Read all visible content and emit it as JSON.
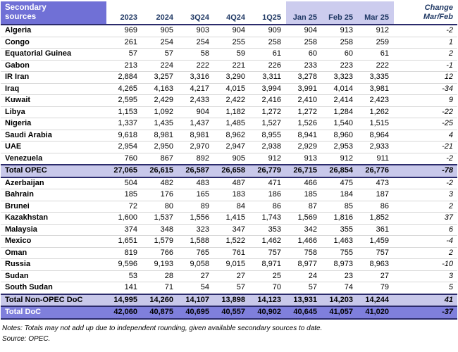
{
  "table": {
    "title_lines": [
      "Secondary",
      "sources"
    ],
    "change_header_lines": [
      "Change",
      "Mar/Feb"
    ],
    "columns": [
      {
        "label": "2023",
        "highlight": false
      },
      {
        "label": "2024",
        "highlight": false
      },
      {
        "label": "3Q24",
        "highlight": false
      },
      {
        "label": "4Q24",
        "highlight": false
      },
      {
        "label": "1Q25",
        "highlight": false
      },
      {
        "label": "Jan 25",
        "highlight": true
      },
      {
        "label": "Feb 25",
        "highlight": true
      },
      {
        "label": "Mar 25",
        "highlight": true
      }
    ],
    "rows": [
      {
        "type": "data",
        "name": "Algeria",
        "values": [
          "969",
          "905",
          "903",
          "904",
          "909",
          "904",
          "913",
          "912"
        ],
        "change": "-2"
      },
      {
        "type": "data",
        "name": "Congo",
        "values": [
          "261",
          "254",
          "254",
          "255",
          "258",
          "258",
          "258",
          "259"
        ],
        "change": "1"
      },
      {
        "type": "data",
        "name": "Equatorial Guinea",
        "values": [
          "57",
          "57",
          "58",
          "59",
          "61",
          "60",
          "60",
          "61"
        ],
        "change": "2"
      },
      {
        "type": "data",
        "name": "Gabon",
        "values": [
          "213",
          "224",
          "222",
          "221",
          "226",
          "233",
          "223",
          "222"
        ],
        "change": "-1"
      },
      {
        "type": "data",
        "name": "IR Iran",
        "values": [
          "2,884",
          "3,257",
          "3,316",
          "3,290",
          "3,311",
          "3,278",
          "3,323",
          "3,335"
        ],
        "change": "12"
      },
      {
        "type": "data",
        "name": "Iraq",
        "values": [
          "4,265",
          "4,163",
          "4,217",
          "4,015",
          "3,994",
          "3,991",
          "4,014",
          "3,981"
        ],
        "change": "-34"
      },
      {
        "type": "data",
        "name": "Kuwait",
        "values": [
          "2,595",
          "2,429",
          "2,433",
          "2,422",
          "2,416",
          "2,410",
          "2,414",
          "2,423"
        ],
        "change": "9"
      },
      {
        "type": "data",
        "name": "Libya",
        "values": [
          "1,153",
          "1,092",
          "904",
          "1,182",
          "1,272",
          "1,272",
          "1,284",
          "1,262"
        ],
        "change": "-22"
      },
      {
        "type": "data",
        "name": "Nigeria",
        "values": [
          "1,337",
          "1,435",
          "1,437",
          "1,485",
          "1,527",
          "1,526",
          "1,540",
          "1,515"
        ],
        "change": "-25"
      },
      {
        "type": "data",
        "name": "Saudi Arabia",
        "values": [
          "9,618",
          "8,981",
          "8,981",
          "8,962",
          "8,955",
          "8,941",
          "8,960",
          "8,964"
        ],
        "change": "4"
      },
      {
        "type": "data",
        "name": "UAE",
        "values": [
          "2,954",
          "2,950",
          "2,970",
          "2,947",
          "2,938",
          "2,929",
          "2,953",
          "2,933"
        ],
        "change": "-21"
      },
      {
        "type": "data",
        "name": "Venezuela",
        "values": [
          "760",
          "867",
          "892",
          "905",
          "912",
          "913",
          "912",
          "911"
        ],
        "change": "-2"
      },
      {
        "type": "subtotal",
        "name": "Total  OPEC",
        "values": [
          "27,065",
          "26,615",
          "26,587",
          "26,658",
          "26,779",
          "26,715",
          "26,854",
          "26,776"
        ],
        "change": "-78"
      },
      {
        "type": "data",
        "name": "Azerbaijan",
        "values": [
          "504",
          "482",
          "483",
          "487",
          "471",
          "466",
          "475",
          "473"
        ],
        "change": "-2"
      },
      {
        "type": "data",
        "name": "Bahrain",
        "values": [
          "185",
          "176",
          "165",
          "183",
          "186",
          "185",
          "184",
          "187"
        ],
        "change": "3"
      },
      {
        "type": "data",
        "name": "Brunei",
        "values": [
          "72",
          "80",
          "89",
          "84",
          "86",
          "87",
          "85",
          "86"
        ],
        "change": "2"
      },
      {
        "type": "data",
        "name": "Kazakhstan",
        "values": [
          "1,600",
          "1,537",
          "1,556",
          "1,415",
          "1,743",
          "1,569",
          "1,816",
          "1,852"
        ],
        "change": "37"
      },
      {
        "type": "data",
        "name": "Malaysia",
        "values": [
          "374",
          "348",
          "323",
          "347",
          "353",
          "342",
          "355",
          "361"
        ],
        "change": "6"
      },
      {
        "type": "data",
        "name": "Mexico",
        "values": [
          "1,651",
          "1,579",
          "1,588",
          "1,522",
          "1,462",
          "1,466",
          "1,463",
          "1,459"
        ],
        "change": "-4"
      },
      {
        "type": "data",
        "name": "Oman",
        "values": [
          "819",
          "766",
          "765",
          "761",
          "757",
          "758",
          "755",
          "757"
        ],
        "change": "2"
      },
      {
        "type": "data",
        "name": "Russia",
        "values": [
          "9,596",
          "9,193",
          "9,058",
          "9,015",
          "8,971",
          "8,977",
          "8,973",
          "8,963"
        ],
        "change": "-10"
      },
      {
        "type": "data",
        "name": "Sudan",
        "values": [
          "53",
          "28",
          "27",
          "27",
          "25",
          "24",
          "23",
          "27"
        ],
        "change": "3"
      },
      {
        "type": "data",
        "name": "South Sudan",
        "values": [
          "141",
          "71",
          "54",
          "57",
          "70",
          "57",
          "74",
          "79"
        ],
        "change": "5"
      },
      {
        "type": "subtotal",
        "name": "Total Non-OPEC DoC",
        "values": [
          "14,995",
          "14,260",
          "14,107",
          "13,898",
          "14,123",
          "13,931",
          "14,203",
          "14,244"
        ],
        "change": "41"
      },
      {
        "type": "grandtotal",
        "name": "Total DoC",
        "values": [
          "42,060",
          "40,875",
          "40,695",
          "40,557",
          "40,902",
          "40,645",
          "41,057",
          "41,020"
        ],
        "change": "-37"
      }
    ]
  },
  "footer": {
    "notes": "Notes: Totals may not add up due to independent rounding, given available secondary sources to date.",
    "source": "Source: OPEC."
  },
  "colors": {
    "header_purple": "#7070D6",
    "highlight_lavender": "#CCCCEE",
    "header_text_navy": "#1F3864",
    "total_lavender": "#C8C8EA",
    "grand_purple": "#7F7FDC",
    "border_dark": "#2B2B6B"
  }
}
